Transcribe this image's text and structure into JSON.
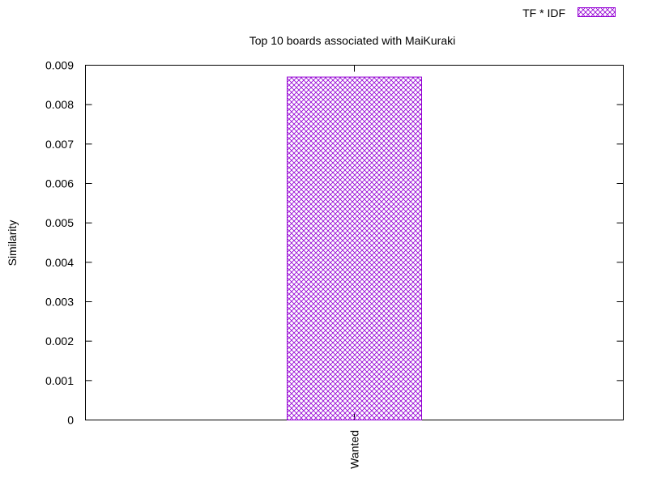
{
  "chart_data": {
    "type": "bar",
    "title": "Top 10 boards associated with MaiKuraki",
    "xlabel": "",
    "ylabel": "Similarity",
    "ylim": [
      0,
      0.009
    ],
    "yticks": [
      "0",
      "0.001",
      "0.002",
      "0.003",
      "0.004",
      "0.005",
      "0.006",
      "0.007",
      "0.008",
      "0.009"
    ],
    "categories": [
      "Wanted"
    ],
    "series": [
      {
        "name": "TF * IDF",
        "values": [
          0.0087
        ]
      }
    ],
    "legend_position": "top-right",
    "grid": false,
    "colors": {
      "bar": "#9400d3",
      "axis": "#000000",
      "background": "#ffffff"
    },
    "bar_fill_pattern": "crosshatch"
  }
}
